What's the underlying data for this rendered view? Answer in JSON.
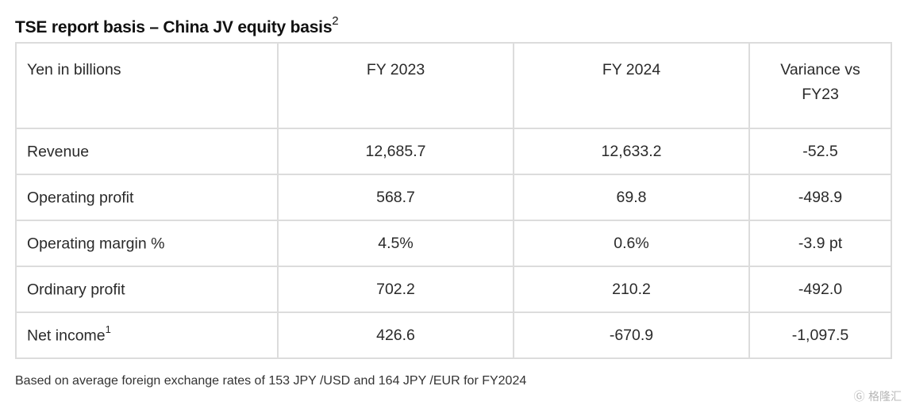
{
  "title": {
    "text": "TSE report basis – China JV equity basis",
    "superscript": "2"
  },
  "table": {
    "headers": [
      "Yen in billions",
      "FY 2023",
      "FY 2024",
      "Variance vs FY23"
    ],
    "rows": [
      {
        "label": "Revenue",
        "label_sup": "",
        "fy2023": "12,685.7",
        "fy2024": "12,633.2",
        "variance": "-52.5"
      },
      {
        "label": "Operating profit",
        "label_sup": "",
        "fy2023": "568.7",
        "fy2024": "69.8",
        "variance": "-498.9"
      },
      {
        "label": "Operating margin %",
        "label_sup": "",
        "fy2023": "4.5%",
        "fy2024": "0.6%",
        "variance": "-3.9 pt"
      },
      {
        "label": "Ordinary profit",
        "label_sup": "",
        "fy2023": "702.2",
        "fy2024": "210.2",
        "variance": "-492.0"
      },
      {
        "label": "Net income",
        "label_sup": "1",
        "fy2023": "426.6",
        "fy2024": "-670.9",
        "variance": "-1,097.5"
      }
    ]
  },
  "footnote": "Based on average foreign exchange rates of 153 JPY /USD and 164 JPY /EUR for FY2024",
  "watermark": "格隆汇"
}
